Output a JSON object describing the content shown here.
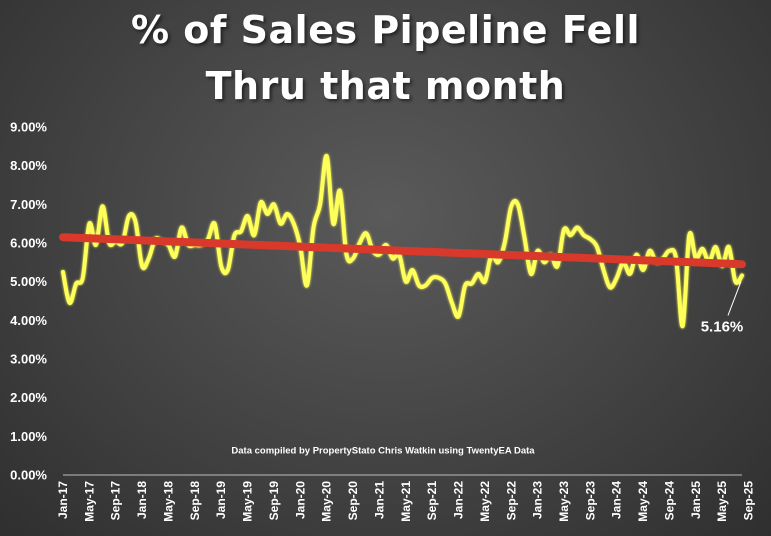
{
  "chart_data": {
    "type": "line",
    "title_line1": "% of Sales Pipeline Fell",
    "title_line2": "Thru that month",
    "xlabel": "",
    "ylabel": "",
    "ylim": [
      0,
      9
    ],
    "y_ticks": [
      "0.00%",
      "1.00%",
      "2.00%",
      "3.00%",
      "4.00%",
      "5.00%",
      "6.00%",
      "7.00%",
      "8.00%",
      "9.00%"
    ],
    "x_tick_labels": [
      "Jan-17",
      "May-17",
      "Sep-17",
      "Jan-18",
      "May-18",
      "Sep-18",
      "Jan-19",
      "May-19",
      "Sep-19",
      "Jan-20",
      "May-20",
      "Sep-20",
      "Jan-21",
      "May-21",
      "Sep-21",
      "Jan-22",
      "May-22",
      "Sep-22",
      "Jan-23",
      "May-23",
      "Sep-23",
      "Jan-24",
      "May-24",
      "Sep-24",
      "Jan-25",
      "May-25",
      "Sep-25"
    ],
    "grid": false,
    "annotation_note": "Data compiled by PropertyStato Chris Watkin using TwentyEA Data",
    "callout_label": "5.16%",
    "series": [
      {
        "color": "#ffff5a",
        "values": [
          5.25,
          4.45,
          4.95,
          5.1,
          6.5,
          5.95,
          6.95,
          6.0,
          6.05,
          6.0,
          6.7,
          6.55,
          5.4,
          5.6,
          6.1,
          6.05,
          5.95,
          5.65,
          6.4,
          5.95,
          5.95,
          5.95,
          6.1,
          6.5,
          5.4,
          5.3,
          6.2,
          6.3,
          6.7,
          6.2,
          7.05,
          6.75,
          7.0,
          6.5,
          6.75,
          6.5,
          5.9,
          4.9,
          6.4,
          7.0,
          8.25,
          6.5,
          7.35,
          5.7,
          5.6,
          6.0,
          6.25,
          5.8,
          5.7,
          5.95,
          5.6,
          5.7,
          5.0,
          5.3,
          4.9,
          4.9,
          5.1,
          5.1,
          4.95,
          4.45,
          4.1,
          4.9,
          4.95,
          5.2,
          5.0,
          5.7,
          5.5,
          6.0,
          6.95,
          7.0,
          6.15,
          5.2,
          5.8,
          5.5,
          5.7,
          5.4,
          6.35,
          6.2,
          6.4,
          6.2,
          6.1,
          5.9,
          5.3,
          4.85,
          5.1,
          5.5,
          5.2,
          5.7,
          5.3,
          5.8,
          5.5,
          5.6,
          5.8,
          5.6,
          3.85,
          6.2,
          5.6,
          5.85,
          5.5,
          5.9,
          5.4,
          5.9,
          5.0,
          5.16
        ]
      },
      {
        "color": "#d8392b",
        "values": [
          6.15,
          5.45
        ]
      }
    ]
  }
}
